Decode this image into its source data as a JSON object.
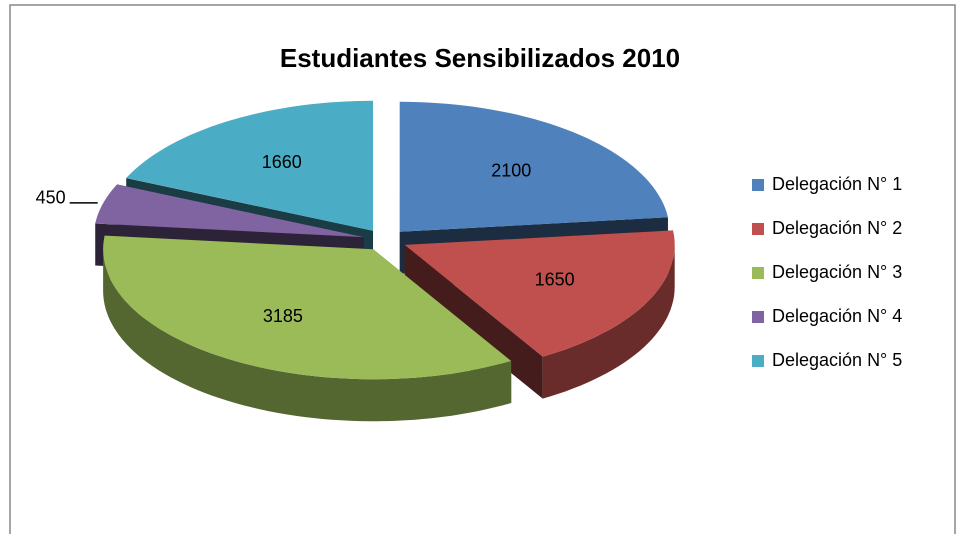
{
  "chart_data": {
    "type": "pie3d",
    "title": "Estudiantes Sensibilizados 2010",
    "categories": [
      "Delegación N° 1",
      "Delegación N° 2",
      "Delegación N° 3",
      "Delegación N° 4",
      "Delegación N° 5"
    ],
    "values": [
      2100,
      1650,
      3185,
      450,
      1660
    ],
    "colors": [
      "#4f81bd",
      "#c0504d",
      "#9bbb59",
      "#8064a2",
      "#4bacc6"
    ],
    "legend": "right"
  }
}
